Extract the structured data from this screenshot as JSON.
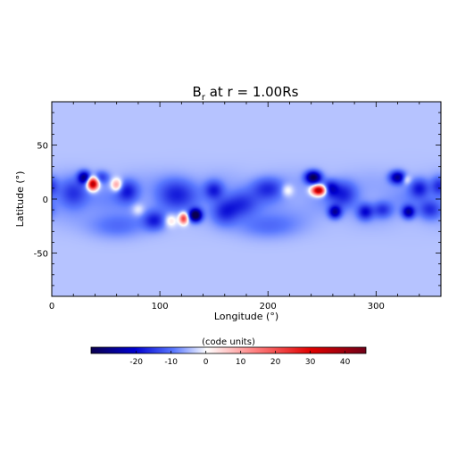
{
  "chart_data": {
    "type": "heatmap",
    "title_main": "B",
    "title_sub": "r",
    "title_rest": " at r = 1.00Rs",
    "xlabel": "Longitude (°)",
    "ylabel": "Latitude (°)",
    "xlim": [
      0,
      360
    ],
    "ylim": [
      -90,
      90
    ],
    "xticks": [
      0,
      100,
      200,
      300
    ],
    "yticks": [
      -50,
      0,
      50
    ],
    "colorbar": {
      "label": "(code units)",
      "range": [
        -33,
        46
      ],
      "ticks": [
        -20,
        -10,
        0,
        10,
        20,
        30,
        40
      ],
      "colors": [
        "#0a0050",
        "#0000d0",
        "#5a78ff",
        "#ffffff",
        "#ff7e7e",
        "#e00000",
        "#700018"
      ]
    },
    "background_value": -4,
    "features": [
      {
        "lon": 38,
        "lat": 14,
        "value": 46,
        "sigma_lon": 3.5,
        "sigma_lat": 4
      },
      {
        "lon": 30,
        "lat": 20,
        "value": -22,
        "sigma_lon": 4,
        "sigma_lat": 4
      },
      {
        "lon": 46,
        "lat": 20,
        "value": -10,
        "sigma_lon": 5,
        "sigma_lat": 4
      },
      {
        "lon": 60,
        "lat": 13,
        "value": 18,
        "sigma_lon": 3.5,
        "sigma_lat": 4
      },
      {
        "lon": 70,
        "lat": 7,
        "value": -12,
        "sigma_lon": 7,
        "sigma_lat": 7
      },
      {
        "lon": 20,
        "lat": 5,
        "value": -10,
        "sigma_lon": 9,
        "sigma_lat": 9
      },
      {
        "lon": 80,
        "lat": -10,
        "value": 6,
        "sigma_lon": 4,
        "sigma_lat": 4
      },
      {
        "lon": 95,
        "lat": -20,
        "value": -12,
        "sigma_lon": 7,
        "sigma_lat": 6
      },
      {
        "lon": 110,
        "lat": -20,
        "value": 9,
        "sigma_lon": 4,
        "sigma_lat": 4
      },
      {
        "lon": 122,
        "lat": -18,
        "value": 28,
        "sigma_lon": 2.8,
        "sigma_lat": 3.5
      },
      {
        "lon": 133,
        "lat": -15,
        "value": -32,
        "sigma_lon": 4,
        "sigma_lat": 4
      },
      {
        "lon": 115,
        "lat": 5,
        "value": -10,
        "sigma_lon": 12,
        "sigma_lat": 10
      },
      {
        "lon": 150,
        "lat": 8,
        "value": -12,
        "sigma_lon": 6,
        "sigma_lat": 6
      },
      {
        "lon": 160,
        "lat": -12,
        "value": -10,
        "sigma_lon": 8,
        "sigma_lat": 8
      },
      {
        "lon": 175,
        "lat": -5,
        "value": -9,
        "sigma_lon": 10,
        "sigma_lat": 8
      },
      {
        "lon": 200,
        "lat": 10,
        "value": -10,
        "sigma_lon": 10,
        "sigma_lat": 7
      },
      {
        "lon": 218,
        "lat": 8,
        "value": 8,
        "sigma_lon": 4,
        "sigma_lat": 4
      },
      {
        "lon": 242,
        "lat": 20,
        "value": -28,
        "sigma_lon": 5,
        "sigma_lat": 4
      },
      {
        "lon": 247,
        "lat": 8,
        "value": 46,
        "sigma_lon": 4.5,
        "sigma_lat": 3.2
      },
      {
        "lon": 258,
        "lat": 10,
        "value": -14,
        "sigma_lon": 5,
        "sigma_lat": 5
      },
      {
        "lon": 262,
        "lat": -12,
        "value": -20,
        "sigma_lon": 4,
        "sigma_lat": 4
      },
      {
        "lon": 270,
        "lat": 5,
        "value": -10,
        "sigma_lon": 8,
        "sigma_lat": 8
      },
      {
        "lon": 290,
        "lat": -12,
        "value": -14,
        "sigma_lon": 5,
        "sigma_lat": 5
      },
      {
        "lon": 306,
        "lat": -10,
        "value": -10,
        "sigma_lon": 6,
        "sigma_lat": 5
      },
      {
        "lon": 320,
        "lat": 20,
        "value": -22,
        "sigma_lon": 5,
        "sigma_lat": 4
      },
      {
        "lon": 328,
        "lat": 18,
        "value": 8,
        "sigma_lon": 3,
        "sigma_lat": 3
      },
      {
        "lon": 340,
        "lat": 10,
        "value": -12,
        "sigma_lon": 6,
        "sigma_lat": 6
      },
      {
        "lon": 330,
        "lat": -12,
        "value": -20,
        "sigma_lon": 4,
        "sigma_lat": 4
      },
      {
        "lon": 350,
        "lat": -10,
        "value": -10,
        "sigma_lon": 7,
        "sigma_lat": 6
      },
      {
        "lon": 358,
        "lat": 12,
        "value": -10,
        "sigma_lon": 5,
        "sigma_lat": 6
      },
      {
        "lon": 200,
        "lat": -25,
        "value": -6,
        "sigma_lon": 20,
        "sigma_lat": 8
      },
      {
        "lon": 60,
        "lat": -25,
        "value": -6,
        "sigma_lon": 18,
        "sigma_lat": 8
      }
    ]
  }
}
